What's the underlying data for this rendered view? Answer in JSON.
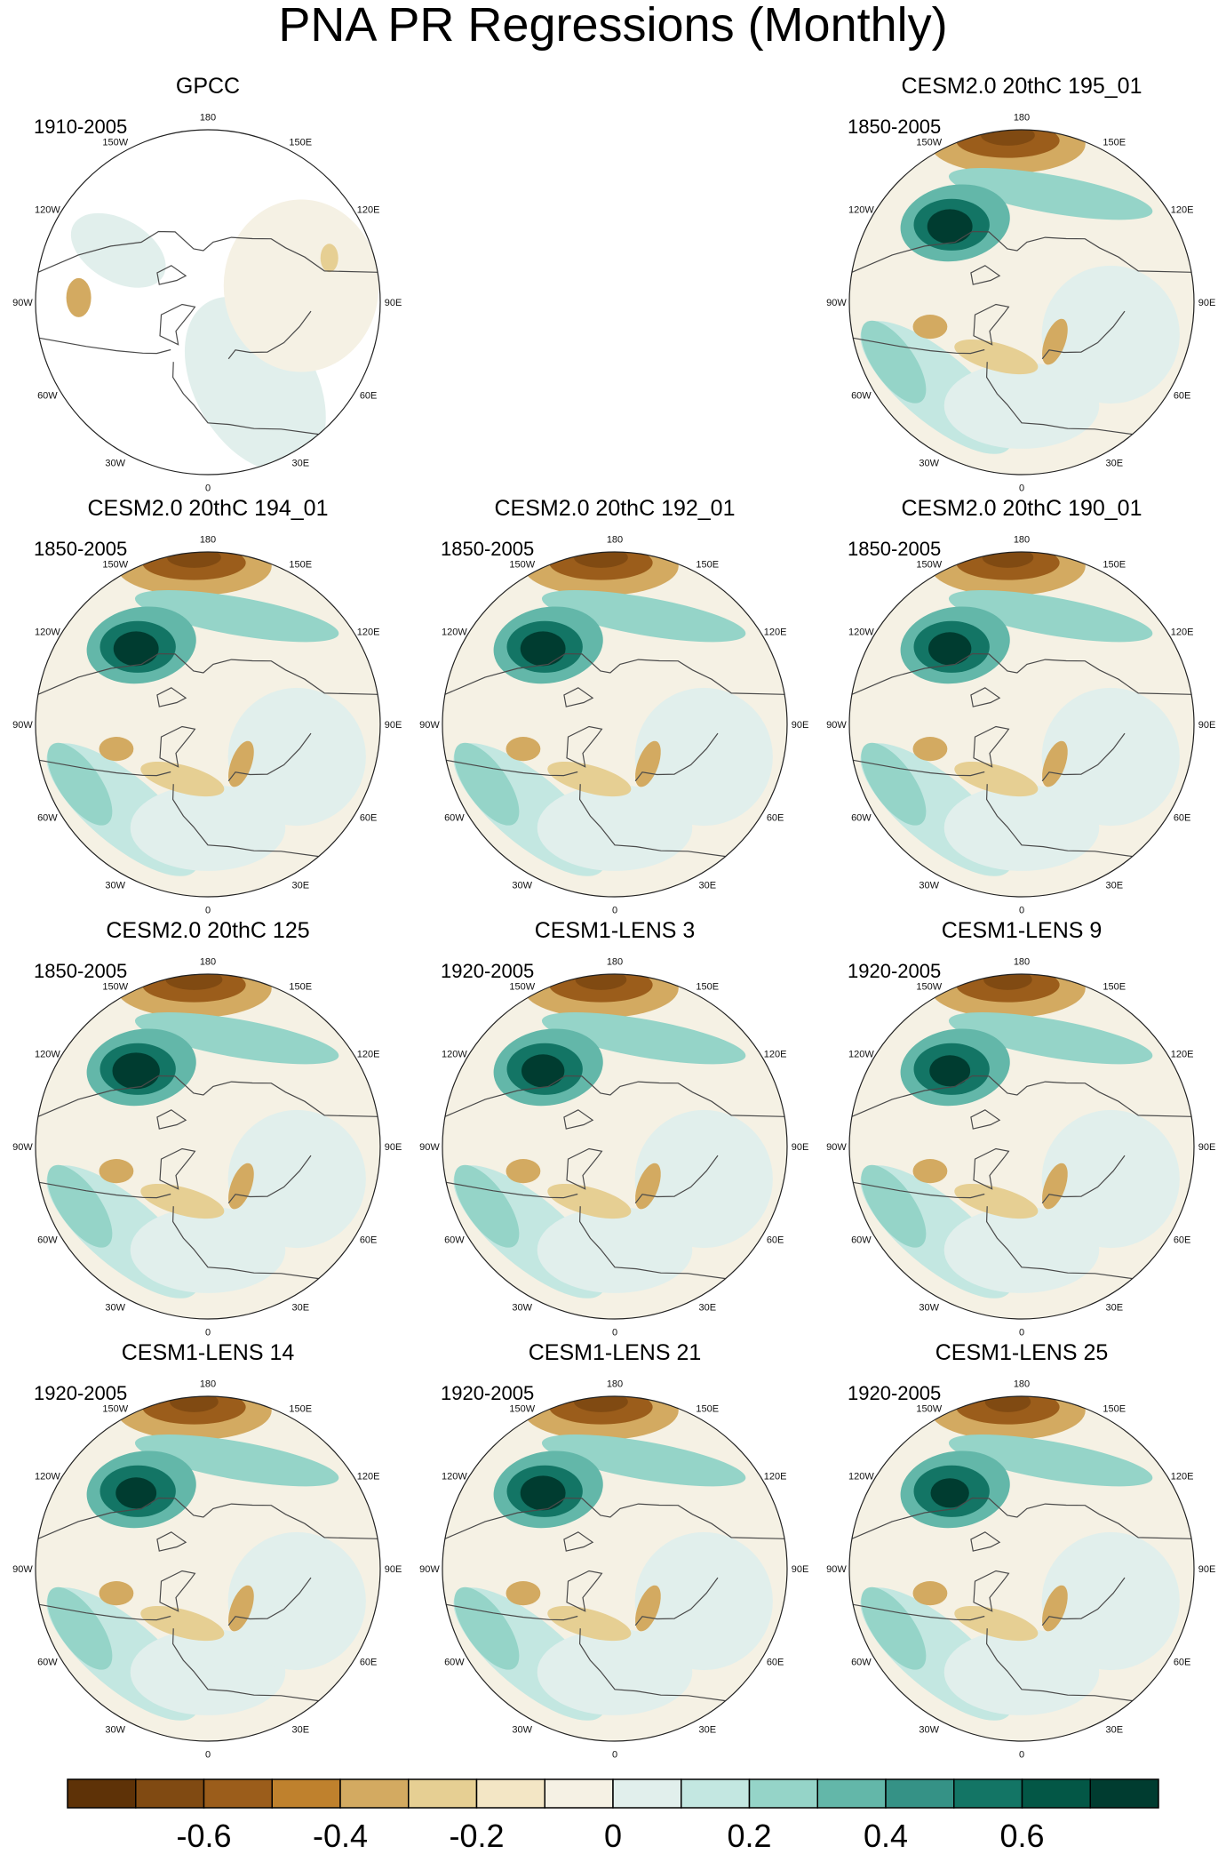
{
  "title": "PNA PR Regressions (Monthly)",
  "longitude_labels": [
    "180",
    "150E",
    "120E",
    "90E",
    "60E",
    "30E",
    "0",
    "30W",
    "60W",
    "90W",
    "120W",
    "150W"
  ],
  "panels": [
    {
      "id": "gpcc",
      "title": "GPCC",
      "period": "1910-2005",
      "pacific_strength": 0,
      "masked": true
    },
    {
      "id": "cesm2-195",
      "title": "CESM2.0 20thC 195_01",
      "period": "1850-2005",
      "pacific_strength": 0.85,
      "masked": false
    },
    {
      "id": "cesm2-194",
      "title": "CESM2.0 20thC 194_01",
      "period": "1850-2005",
      "pacific_strength": 0.85,
      "masked": false
    },
    {
      "id": "cesm2-192",
      "title": "CESM2.0 20thC 192_01",
      "period": "1850-2005",
      "pacific_strength": 0.85,
      "masked": false
    },
    {
      "id": "cesm2-190",
      "title": "CESM2.0 20thC 190_01",
      "period": "1850-2005",
      "pacific_strength": 0.8,
      "masked": false
    },
    {
      "id": "cesm2-125",
      "title": "CESM2.0 20thC 125",
      "period": "1850-2005",
      "pacific_strength": 0.9,
      "masked": false
    },
    {
      "id": "lens-3",
      "title": "CESM1-LENS 3",
      "period": "1920-2005",
      "pacific_strength": 0.8,
      "masked": false
    },
    {
      "id": "lens-9",
      "title": "CESM1-LENS 9",
      "period": "1920-2005",
      "pacific_strength": 0.75,
      "masked": false
    },
    {
      "id": "lens-14",
      "title": "CESM1-LENS 14",
      "period": "1920-2005",
      "pacific_strength": 0.75,
      "masked": false
    },
    {
      "id": "lens-21",
      "title": "CESM1-LENS 21",
      "period": "1920-2005",
      "pacific_strength": 0.85,
      "masked": false
    },
    {
      "id": "lens-25",
      "title": "CESM1-LENS 25",
      "period": "1920-2005",
      "pacific_strength": 0.7,
      "masked": false
    }
  ],
  "colorbar": {
    "colors": [
      "#5e3207",
      "#804a12",
      "#9b5d1b",
      "#bf812d",
      "#d3aa61",
      "#e6cf93",
      "#f3e6c5",
      "#f5f1e4",
      "#e1efec",
      "#c3e7e1",
      "#95d4c8",
      "#63b7a9",
      "#359286",
      "#137565",
      "#035746",
      "#003c30"
    ],
    "tick_labels": [
      "-0.6",
      "-0.4",
      "-0.2",
      "0",
      "0.2",
      "0.4",
      "0.6"
    ]
  }
}
